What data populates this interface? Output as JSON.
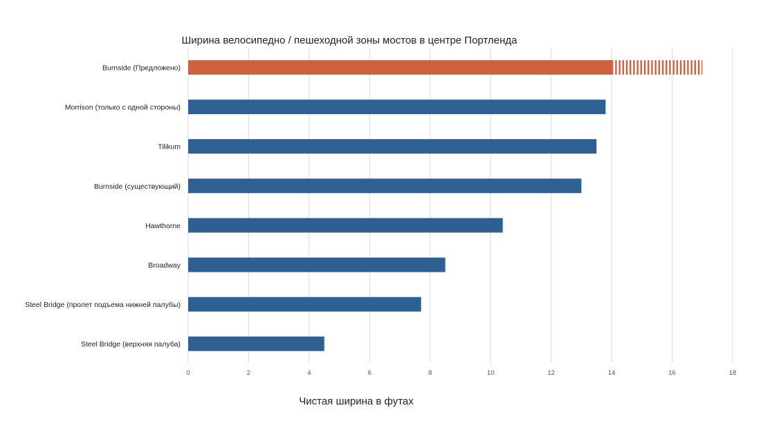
{
  "chart_data": {
    "type": "bar",
    "orientation": "horizontal",
    "title": "Ширина велосипедно / пешеходной зоны мостов в центре Портленда",
    "xlabel": "Чистая ширина в футах",
    "ylabel": "",
    "xlim": [
      0,
      18
    ],
    "x_ticks": [
      "0",
      "2",
      "4",
      "6",
      "8",
      "10",
      "12",
      "14",
      "16",
      "18"
    ],
    "grid": "vertical",
    "categories": [
      "Burnside (Предложено)",
      "Morrison (только с одной стороны)",
      "Tilikum",
      "Burnside (существующий)",
      "Hawthorne",
      "Broadway",
      "Steel Bridge (пролет подъема нижней палубы)",
      "Steel Bridge (верхняя палуба)"
    ],
    "values": [
      14,
      13.8,
      13.5,
      13,
      10.4,
      8.5,
      7.7,
      4.5
    ],
    "extension": {
      "category": "Burnside (Предложено)",
      "from": 14,
      "to": 17,
      "pattern": "vertical-stripes"
    },
    "colors": {
      "highlight": "#D0613F",
      "default": "#2E6093",
      "grid": "#D9D9D9"
    }
  }
}
